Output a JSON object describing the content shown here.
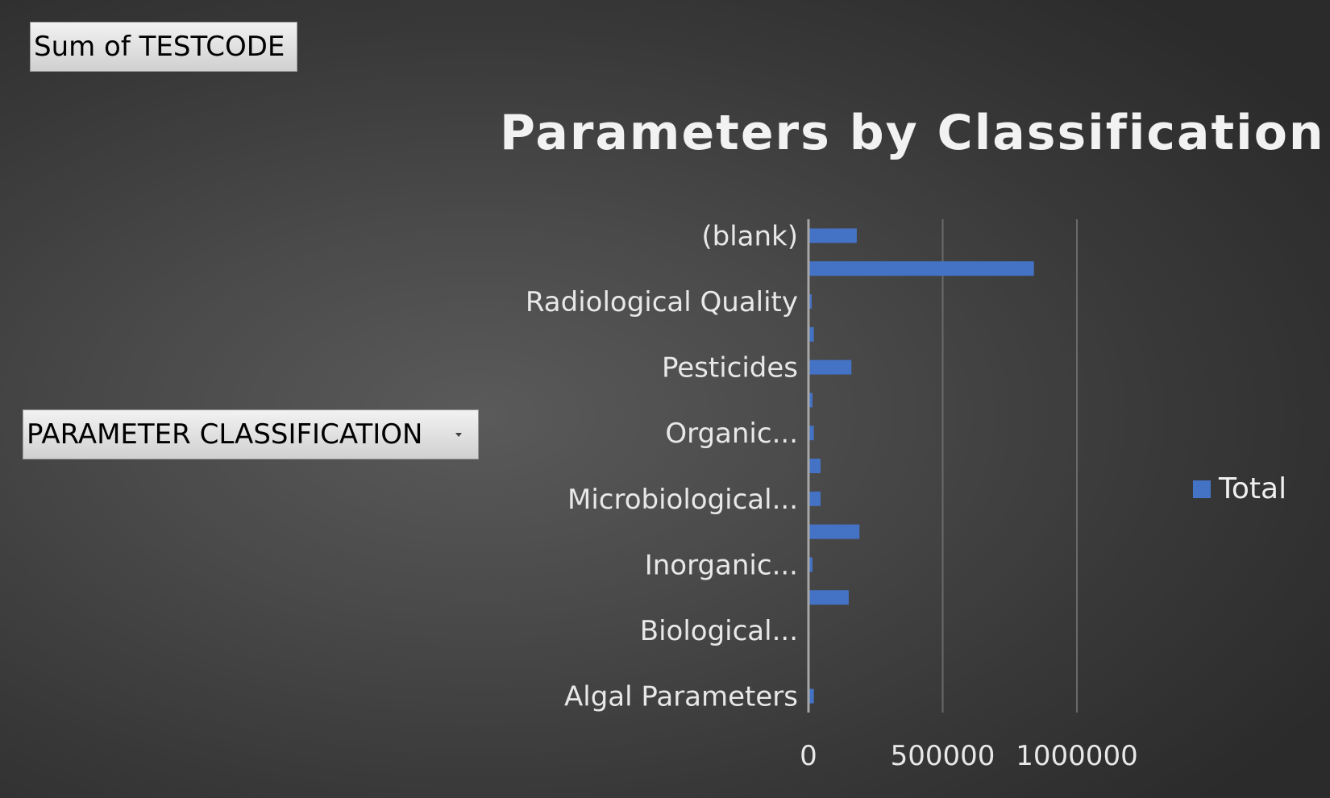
{
  "pivot": {
    "value_field_label": "Sum of TESTCODE",
    "axis_field_label": "PARAMETER CLASSIFICATION",
    "dropdown_icon": "triangle-down"
  },
  "chart_data": {
    "type": "bar",
    "orientation": "horizontal",
    "title": "Parameters by Classification",
    "xlabel": "",
    "ylabel": "",
    "xlim": [
      0,
      1000000
    ],
    "x_ticks": [
      0,
      500000,
      1000000
    ],
    "grid": true,
    "legend_position": "right",
    "categories": [
      "Algal Parameters",
      "",
      "Biological...",
      "",
      "Inorganic...",
      "",
      "Microbiological...",
      "",
      "Organic...",
      "",
      "Pesticides",
      "",
      "Radiological Quality",
      "",
      "(blank)"
    ],
    "series": [
      {
        "name": "Total",
        "color": "#4472c4",
        "values": [
          20000,
          0,
          0,
          150000,
          15000,
          190000,
          45000,
          45000,
          20000,
          15000,
          160000,
          20000,
          12000,
          840000,
          180000
        ]
      }
    ]
  }
}
